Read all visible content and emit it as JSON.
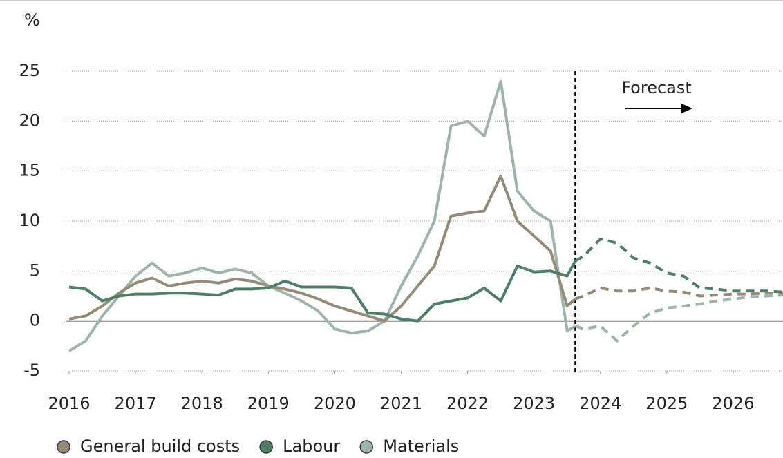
{
  "chart_data": {
    "type": "line",
    "y_label": "%",
    "annotation": "Forecast",
    "forecast_start": 2023.62,
    "x": [
      2016,
      2016.25,
      2016.5,
      2016.75,
      2017,
      2017.25,
      2017.5,
      2017.75,
      2018,
      2018.25,
      2018.5,
      2018.75,
      2019,
      2019.25,
      2019.5,
      2019.75,
      2020,
      2020.25,
      2020.5,
      2020.75,
      2021,
      2021.25,
      2021.5,
      2021.75,
      2022,
      2022.25,
      2022.5,
      2022.75,
      2023,
      2023.25,
      2023.5,
      2023.62,
      2023.75,
      2024,
      2024.25,
      2024.5,
      2024.75,
      2025,
      2025.25,
      2025.5,
      2025.75,
      2026,
      2026.25,
      2026.5,
      2026.75
    ],
    "series": [
      {
        "name": "General build costs",
        "color": "#948a78",
        "values": [
          0.2,
          0.5,
          1.5,
          2.8,
          3.8,
          4.3,
          3.5,
          3.8,
          4.0,
          3.8,
          4.2,
          4.0,
          3.5,
          3.2,
          2.8,
          2.2,
          1.5,
          1.0,
          0.5,
          0.0,
          1.5,
          3.5,
          5.5,
          10.5,
          10.8,
          11.0,
          14.5,
          10.0,
          8.5,
          7.0,
          1.5,
          2.2,
          null,
          null,
          null,
          null,
          null,
          null,
          null,
          null,
          null,
          null,
          null,
          null,
          null
        ],
        "forecast": [
          null,
          null,
          null,
          null,
          null,
          null,
          null,
          null,
          null,
          null,
          null,
          null,
          null,
          null,
          null,
          null,
          null,
          null,
          null,
          null,
          null,
          null,
          null,
          null,
          null,
          null,
          null,
          null,
          null,
          null,
          null,
          2.2,
          2.5,
          3.3,
          3.0,
          3.0,
          3.3,
          3.0,
          2.9,
          2.5,
          2.6,
          2.7,
          2.7,
          2.8,
          2.8
        ]
      },
      {
        "name": "Labour",
        "color": "#4d7f67",
        "values": [
          3.4,
          3.2,
          2.0,
          2.5,
          2.7,
          2.7,
          2.8,
          2.8,
          2.7,
          2.6,
          3.2,
          3.2,
          3.3,
          4.0,
          3.4,
          3.4,
          3.4,
          3.3,
          0.8,
          0.7,
          0.2,
          0.0,
          1.7,
          2.0,
          2.3,
          3.3,
          2.0,
          5.5,
          4.9,
          5.0,
          4.5,
          6.0,
          null,
          null,
          null,
          null,
          null,
          null,
          null,
          null,
          null,
          null,
          null,
          null,
          null
        ],
        "forecast": [
          null,
          null,
          null,
          null,
          null,
          null,
          null,
          null,
          null,
          null,
          null,
          null,
          null,
          null,
          null,
          null,
          null,
          null,
          null,
          null,
          null,
          null,
          null,
          null,
          null,
          null,
          null,
          null,
          null,
          null,
          null,
          6.0,
          6.5,
          8.2,
          7.8,
          6.3,
          5.8,
          4.8,
          4.5,
          3.3,
          3.2,
          3.0,
          3.0,
          3.0,
          2.9
        ]
      },
      {
        "name": "Materials",
        "color": "#9db5a8",
        "values": [
          -3.0,
          -2.0,
          0.5,
          2.5,
          4.5,
          5.8,
          4.5,
          4.8,
          5.3,
          4.8,
          5.2,
          4.8,
          3.5,
          2.8,
          2.0,
          1.0,
          -0.8,
          -1.2,
          -1.0,
          0.0,
          3.5,
          6.5,
          10.0,
          19.5,
          20.0,
          18.5,
          24.0,
          13.0,
          11.0,
          10.0,
          -1.0,
          -0.5,
          null,
          null,
          null,
          null,
          null,
          null,
          null,
          null,
          null,
          null,
          null,
          null,
          null
        ],
        "forecast": [
          null,
          null,
          null,
          null,
          null,
          null,
          null,
          null,
          null,
          null,
          null,
          null,
          null,
          null,
          null,
          null,
          null,
          null,
          null,
          null,
          null,
          null,
          null,
          null,
          null,
          null,
          null,
          null,
          null,
          null,
          null,
          -0.5,
          -0.8,
          -0.5,
          -2.0,
          -0.5,
          0.8,
          1.3,
          1.5,
          1.7,
          2.0,
          2.2,
          2.4,
          2.5,
          2.6
        ]
      }
    ],
    "xlim": [
      2016,
      2026.75
    ],
    "xticks": [
      2016,
      2017,
      2018,
      2019,
      2020,
      2021,
      2022,
      2023,
      2024,
      2025,
      2026
    ],
    "ylim": [
      -5,
      25
    ],
    "yticks": [
      -5,
      0,
      5,
      10,
      15,
      20,
      25
    ],
    "grid": true
  }
}
